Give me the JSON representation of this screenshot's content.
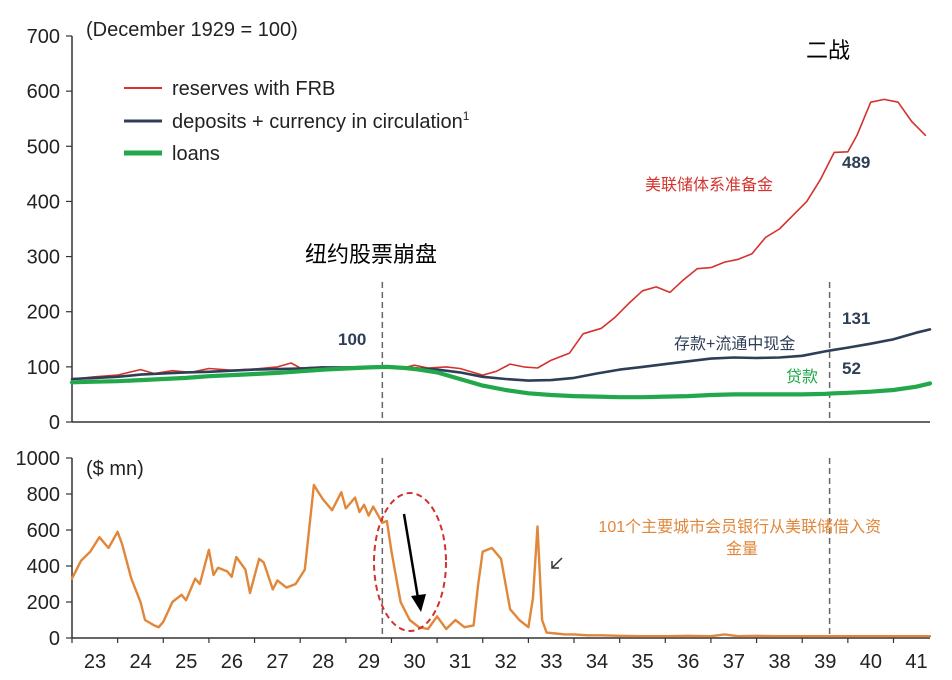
{
  "chart_data": [
    {
      "type": "line",
      "title": "(December 1929 = 100)",
      "xlabel": "",
      "ylabel": "",
      "x_unit": "year (19xx, decimal)",
      "xlim": [
        23,
        41.8
      ],
      "ylim": [
        0,
        700
      ],
      "yticks": [
        0,
        100,
        200,
        300,
        400,
        500,
        600,
        700
      ],
      "grid": false,
      "legend_position": "top-left",
      "series": [
        {
          "name": "reserves with FRB",
          "color": "#d4322c",
          "x": [
            23,
            23.5,
            24,
            24.5,
            24.8,
            25.2,
            25.6,
            26,
            26.5,
            27,
            27.5,
            27.8,
            28,
            28.5,
            29,
            29.5,
            29.9,
            30.2,
            30.5,
            30.8,
            31.2,
            31.5,
            32,
            32.3,
            32.6,
            32.9,
            33.2,
            33.5,
            33.9,
            34.2,
            34.6,
            34.9,
            35.2,
            35.5,
            35.8,
            36.1,
            36.4,
            36.7,
            37,
            37.3,
            37.6,
            37.9,
            38.2,
            38.5,
            38.8,
            39.1,
            39.4,
            39.7,
            40,
            40.2,
            40.5,
            40.8,
            41.1,
            41.4,
            41.7
          ],
          "y": [
            78,
            82,
            85,
            95,
            88,
            93,
            90,
            97,
            94,
            96,
            100,
            107,
            98,
            100,
            96,
            100,
            98,
            97,
            103,
            98,
            100,
            97,
            85,
            92,
            105,
            100,
            98,
            112,
            125,
            160,
            170,
            190,
            215,
            238,
            245,
            235,
            258,
            278,
            280,
            290,
            295,
            305,
            335,
            350,
            375,
            400,
            440,
            489,
            490,
            520,
            580,
            585,
            580,
            545,
            520
          ]
        },
        {
          "name": "deposits + currency in circulation",
          "name_superscript": "1",
          "color": "#2e3e57",
          "x": [
            23,
            23.5,
            24,
            24.5,
            25,
            25.5,
            26,
            26.5,
            27,
            27.5,
            28,
            28.5,
            29,
            29.5,
            29.9,
            30.3,
            30.6,
            31,
            31.5,
            32,
            32.5,
            33,
            33.5,
            34,
            34.5,
            35,
            35.5,
            36,
            36.5,
            37,
            37.5,
            38,
            38.5,
            39,
            39.5,
            39.7,
            40,
            40.5,
            41,
            41.5,
            41.8
          ],
          "y": [
            78,
            80,
            82,
            86,
            88,
            90,
            91,
            93,
            95,
            96,
            97,
            99,
            99,
            100,
            100,
            99,
            97,
            95,
            90,
            82,
            78,
            75,
            76,
            80,
            88,
            95,
            100,
            105,
            110,
            115,
            117,
            116,
            117,
            120,
            128,
            131,
            135,
            142,
            150,
            162,
            168
          ]
        },
        {
          "name": "loans",
          "color": "#22a84a",
          "x": [
            23,
            23.5,
            24,
            24.5,
            25,
            25.5,
            26,
            26.5,
            27,
            27.5,
            28,
            28.5,
            29,
            29.5,
            29.9,
            30.3,
            30.6,
            31,
            31.5,
            32,
            32.5,
            33,
            33.5,
            34,
            34.5,
            35,
            35.5,
            36,
            36.5,
            37,
            37.5,
            38,
            38.5,
            39,
            39.5,
            39.7,
            40,
            40.5,
            41,
            41.5,
            41.8
          ],
          "y": [
            72,
            73,
            74,
            76,
            78,
            80,
            83,
            85,
            87,
            89,
            92,
            95,
            97,
            99,
            100,
            98,
            95,
            90,
            78,
            66,
            58,
            52,
            49,
            47,
            46,
            45,
            45,
            46,
            47,
            49,
            50,
            50,
            50,
            50,
            51,
            52,
            53,
            55,
            58,
            64,
            70
          ]
        }
      ],
      "annotations": [
        {
          "text": "100",
          "x": 29.9,
          "y": 100,
          "color": "#2e3e57"
        },
        {
          "text": "489",
          "x": 39.7,
          "y": 489,
          "color": "#2e3e57"
        },
        {
          "text": "131",
          "x": 39.7,
          "y": 131,
          "color": "#2e3e57"
        },
        {
          "text": "52",
          "x": 39.7,
          "y": 52,
          "color": "#2e3e57"
        },
        {
          "text": "美联储体系准备金",
          "color": "#d4322c"
        },
        {
          "text": "存款+流通中现金",
          "color": "#2e3e57"
        },
        {
          "text": "贷款",
          "color": "#22a84a"
        },
        {
          "text": "纽约股票崩盘",
          "color": "#000000"
        },
        {
          "text": "二战",
          "color": "#000000"
        }
      ],
      "event_lines": [
        29.8,
        39.6
      ]
    },
    {
      "type": "line",
      "title": "($ mn)",
      "xlabel": "",
      "ylabel": "",
      "x_unit": "year (19xx, decimal)",
      "xlim": [
        23,
        41.8
      ],
      "ylim": [
        0,
        1000
      ],
      "yticks": [
        0,
        200,
        400,
        600,
        800,
        1000
      ],
      "xticks": [
        23,
        24,
        25,
        26,
        27,
        28,
        29,
        30,
        31,
        32,
        33,
        34,
        35,
        36,
        37,
        38,
        39,
        40,
        41
      ],
      "xtick_labels": [
        "23",
        "24",
        "25",
        "26",
        "27",
        "28",
        "29",
        "30",
        "31",
        "32",
        "33",
        "34",
        "35",
        "36",
        "37",
        "38",
        "39",
        "40",
        "41"
      ],
      "grid": false,
      "series": [
        {
          "name": "",
          "color": "#e0873a",
          "x": [
            23,
            23.2,
            23.4,
            23.6,
            23.8,
            24,
            24.1,
            24.3,
            24.5,
            24.6,
            24.8,
            24.9,
            25,
            25.2,
            25.4,
            25.5,
            25.7,
            25.8,
            26,
            26.1,
            26.2,
            26.4,
            26.5,
            26.6,
            26.8,
            26.9,
            27.1,
            27.2,
            27.4,
            27.5,
            27.7,
            27.9,
            28.1,
            28.3,
            28.4,
            28.5,
            28.7,
            28.9,
            29,
            29.2,
            29.3,
            29.4,
            29.5,
            29.6,
            29.8,
            29.9,
            30,
            30.2,
            30.4,
            30.6,
            30.8,
            31,
            31.2,
            31.4,
            31.6,
            31.8,
            31.9,
            32,
            32.2,
            32.4,
            32.6,
            32.8,
            33,
            33.1,
            33.2,
            33.3,
            33.4,
            33.6,
            33.8,
            34,
            34.3,
            34.6,
            35,
            35.5,
            36,
            36.5,
            37,
            37.3,
            37.6,
            38,
            38.5,
            39,
            39.5,
            40,
            40.5,
            41,
            41.5,
            41.8
          ],
          "y": [
            330,
            430,
            480,
            560,
            500,
            590,
            520,
            330,
            200,
            100,
            70,
            60,
            90,
            200,
            240,
            210,
            330,
            300,
            490,
            350,
            390,
            370,
            340,
            450,
            380,
            250,
            440,
            420,
            270,
            320,
            280,
            300,
            380,
            850,
            810,
            770,
            710,
            810,
            720,
            780,
            700,
            740,
            680,
            730,
            640,
            650,
            480,
            200,
            100,
            60,
            50,
            120,
            50,
            100,
            60,
            70,
            300,
            480,
            500,
            440,
            160,
            100,
            60,
            220,
            620,
            100,
            30,
            25,
            20,
            20,
            15,
            15,
            12,
            10,
            10,
            12,
            10,
            20,
            10,
            12,
            10,
            10,
            10,
            10,
            10,
            10,
            10,
            10
          ]
        }
      ],
      "annotations": [
        {
          "text": "101个主要城市会员银行从美联储借入资金量",
          "color": "#e0873a"
        }
      ],
      "event_lines": [
        29.8,
        39.6
      ]
    }
  ]
}
